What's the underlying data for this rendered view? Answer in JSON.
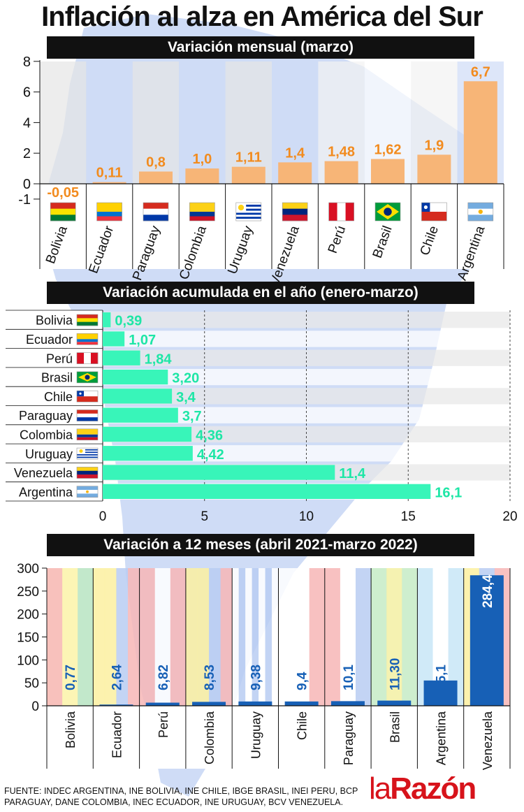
{
  "title": "Inflación al alza en América del Sur",
  "colors": {
    "orange": "#f7b577",
    "orange_label": "#f28b1e",
    "teal": "#38f5b9",
    "teal_label": "#1ee6a6",
    "blue": "#1760b6",
    "map": "#cfdcf6"
  },
  "chart_data": [
    {
      "type": "bar",
      "title": "Variación mensual (marzo)",
      "categories": [
        "Bolivia",
        "Ecuador",
        "Paraguay",
        "Colombia",
        "Uruguay",
        "Venezuela",
        "Perú",
        "Brasil",
        "Chile",
        "Argentina"
      ],
      "values": [
        -0.05,
        0.11,
        0.8,
        1.0,
        1.11,
        1.4,
        1.48,
        1.62,
        1.9,
        6.7
      ],
      "labels": [
        "-0,05",
        "0,11",
        "0,8",
        "1,0",
        "1,11",
        "1,4",
        "1,48",
        "1,62",
        "1,9",
        "6,7"
      ],
      "y_ticks": [
        "8",
        "6",
        "4",
        "2",
        "0",
        "-1"
      ],
      "ylim": [
        -1,
        8
      ],
      "flag_icons": [
        "bolivia-flag-icon",
        "ecuador-flag-icon",
        "paraguay-flag-icon",
        "colombia-flag-icon",
        "uruguay-flag-icon",
        "venezuela-flag-icon",
        "peru-flag-icon",
        "brasil-flag-icon",
        "chile-flag-icon",
        "argentina-flag-icon"
      ]
    },
    {
      "type": "bar",
      "orientation": "horizontal",
      "title": "Variación acumulada en el año (enero-marzo)",
      "categories": [
        "Bolivia",
        "Ecuador",
        "Perú",
        "Brasil",
        "Chile",
        "Paraguay",
        "Colombia",
        "Uruguay",
        "Venezuela",
        "Argentina"
      ],
      "values": [
        0.39,
        1.07,
        1.84,
        3.2,
        3.4,
        3.7,
        4.36,
        4.42,
        11.4,
        16.1
      ],
      "labels": [
        "0,39",
        "1,07",
        "1,84",
        "3,20",
        "3,4",
        "3,7",
        "4,36",
        "4,42",
        "11,4",
        "16,1"
      ],
      "x_ticks": [
        "0",
        "5",
        "10",
        "15",
        "20"
      ],
      "xlim": [
        0,
        20
      ],
      "flag_icons": [
        "bolivia-flag-icon",
        "ecuador-flag-icon",
        "peru-flag-icon",
        "brasil-flag-icon",
        "chile-flag-icon",
        "paraguay-flag-icon",
        "colombia-flag-icon",
        "uruguay-flag-icon",
        "venezuela-flag-icon",
        "argentina-flag-icon"
      ]
    },
    {
      "type": "bar",
      "title": "Variación a 12 meses (abril 2021-marzo 2022)",
      "categories": [
        "Bolivia",
        "Ecuador",
        "Perú",
        "Colombia",
        "Uruguay",
        "Chile",
        "Paraguay",
        "Brasil",
        "Argentina",
        "Venezuela"
      ],
      "values": [
        0.77,
        2.64,
        6.82,
        8.53,
        9.38,
        9.4,
        10.1,
        11.3,
        55.1,
        284.4
      ],
      "labels": [
        "0,77",
        "2,64",
        "6,82",
        "8,53",
        "9,38",
        "9,4",
        "10,1",
        "11,30",
        "55,1",
        "284,4"
      ],
      "y_ticks": [
        "300",
        "250",
        "200",
        "150",
        "100",
        "50",
        "0"
      ],
      "ylim": [
        0,
        300
      ],
      "flag_backdrops": [
        "bolivia-flag-backdrop",
        "ecuador-flag-backdrop",
        "peru-flag-backdrop",
        "colombia-flag-backdrop",
        "uruguay-flag-backdrop",
        "chile-flag-backdrop",
        "paraguay-flag-backdrop",
        "brasil-flag-backdrop",
        "argentina-flag-backdrop",
        "venezuela-flag-backdrop"
      ]
    }
  ],
  "footer": {
    "source_line1": "FUENTE: INDEC ARGENTINA, INE BOLIVIA, INE CHILE, IBGE BRASIL, INEI PERU, BCP",
    "source_line2": "PARAGUAY, DANE COLOMBIA, INEC ECUADOR, INE URUGUAY, BCV VENEZUELA.",
    "logo_la": "la",
    "logo_razon": "Razón"
  }
}
